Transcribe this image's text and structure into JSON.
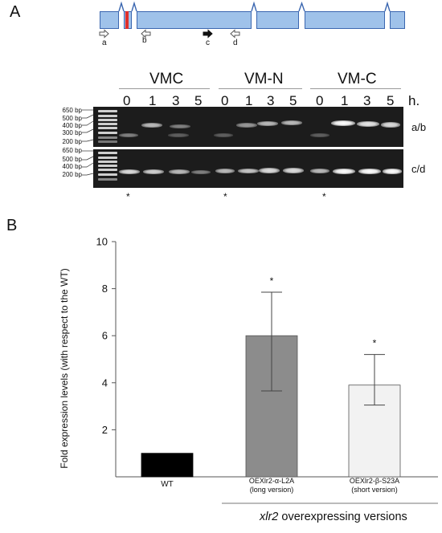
{
  "panel_a": {
    "letter": "A",
    "primers": [
      "a",
      "b",
      "c",
      "d"
    ],
    "groups": [
      "VMC",
      "VM-N",
      "VM-C"
    ],
    "timepoints": [
      "0",
      "1",
      "3",
      "5"
    ],
    "time_unit": "h.",
    "ladder": [
      "650 bp",
      "500 bp",
      "400 bp",
      "300 bp",
      "200 bp"
    ],
    "gel1_label": "a/b",
    "gel2_label": "c/d",
    "stars": [
      "*",
      "*",
      "*"
    ]
  },
  "panel_b": {
    "letter": "B"
  },
  "chart_data": {
    "type": "bar",
    "categories": [
      "WT",
      "OEXlr2-α-L2A\n(long version)",
      "OEXlr2-β-S23A\n(short version)"
    ],
    "values": [
      1.0,
      6.0,
      3.9
    ],
    "error_low": [
      1.0,
      3.65,
      3.05
    ],
    "error_high": [
      1.0,
      7.85,
      5.2
    ],
    "significance": [
      "",
      "*",
      "*"
    ],
    "colors": [
      "#000000",
      "#8c8c8c",
      "#f2f2f2"
    ],
    "ylabel": "Fold expression levels (with respect to  the WT)",
    "xlabel_italic": "xlr2",
    "xlabel_rest": " overexpressing  versions",
    "ylim": [
      0,
      10
    ],
    "yticks": [
      2,
      4,
      6,
      8,
      10
    ]
  }
}
